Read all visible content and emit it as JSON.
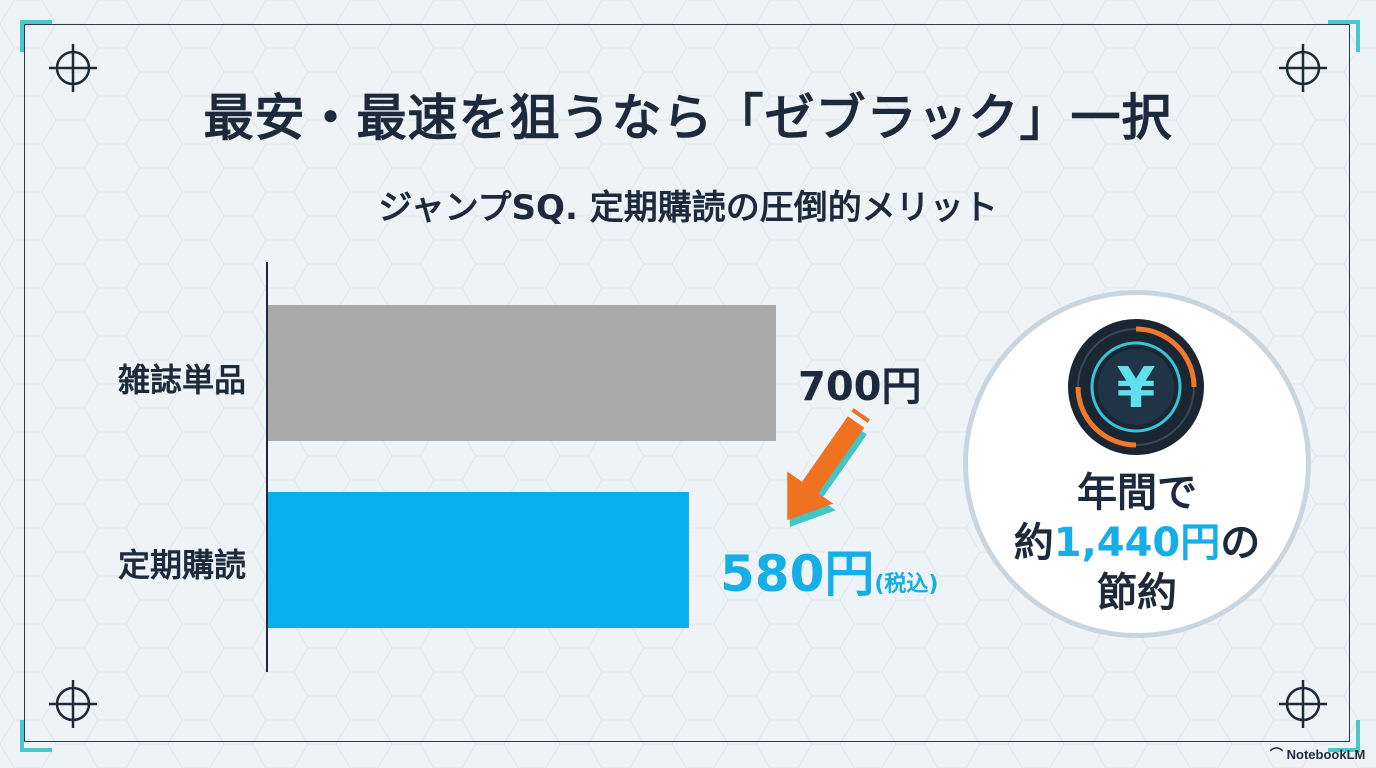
{
  "header": {
    "title": "最安・最速を狙うなら「ゼブラック」一択",
    "subtitle": "ジャンプSQ. 定期購読の圧倒的メリット"
  },
  "chart_data": {
    "type": "bar",
    "orientation": "horizontal",
    "categories": [
      "雑誌単品",
      "定期購読"
    ],
    "values": [
      700,
      580
    ],
    "value_labels": [
      "700円",
      "580円"
    ],
    "value_note": "(税込)",
    "colors": [
      "#a9a9a9",
      "#06b0ed"
    ],
    "title": "",
    "xlabel": "",
    "ylabel": "",
    "grid": false
  },
  "savings": {
    "line1": "年間で",
    "prefix": "約",
    "amount": "1,440円",
    "suffix": "の",
    "line3": "節約",
    "icon": "yen-icon"
  },
  "footer": {
    "brand": "NotebookLM",
    "icon": "notebooklm-logo-icon"
  },
  "colors": {
    "accent": "#16aee6",
    "arrow": "#f0711f",
    "text": "#1d2a3b",
    "frame_corner": "#49c7cf"
  }
}
